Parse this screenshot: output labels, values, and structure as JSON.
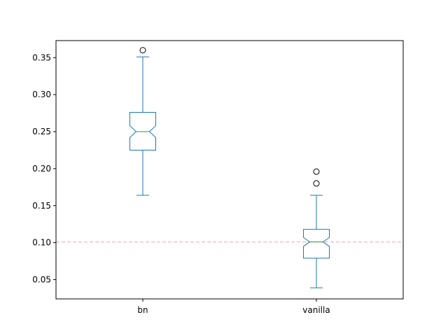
{
  "chart_data": {
    "type": "boxplot",
    "categories": [
      "bn",
      "vanilla"
    ],
    "ylim": [
      0.024,
      0.373
    ],
    "yticks": [
      0.05,
      0.1,
      0.15,
      0.2,
      0.25,
      0.3,
      0.35
    ],
    "ytick_labels": [
      "0.05",
      "0.10",
      "0.15",
      "0.20",
      "0.25",
      "0.30",
      "0.35"
    ],
    "notched": true,
    "boxes": [
      {
        "label": "bn",
        "whisker_low": 0.164,
        "q1": 0.225,
        "median": 0.25,
        "q3": 0.276,
        "whisker_high": 0.351,
        "notch_low": 0.242,
        "notch_high": 0.258,
        "outliers": [
          0.36
        ]
      },
      {
        "label": "vanilla",
        "whisker_low": 0.039,
        "q1": 0.079,
        "median": 0.101,
        "q3": 0.118,
        "whisker_high": 0.164,
        "notch_low": 0.095,
        "notch_high": 0.107,
        "outliers": [
          0.18,
          0.196
        ]
      }
    ],
    "reference_line": {
      "y": 0.101,
      "color": "#ffb6c1",
      "style": "dashed"
    },
    "colors": {
      "box": "#1f77b4",
      "median": "#2ca02c",
      "outlier": "#000000"
    },
    "grid": false,
    "xlabel": "",
    "ylabel": "",
    "title": ""
  }
}
